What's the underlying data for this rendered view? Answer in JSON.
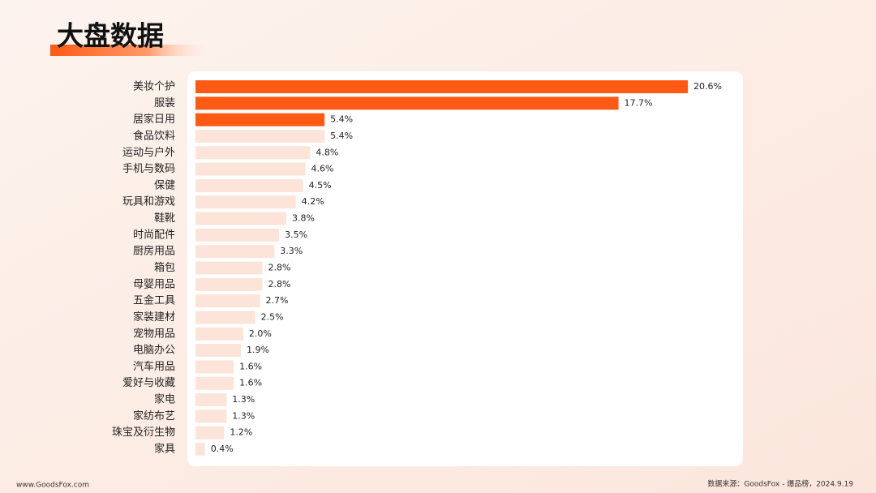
{
  "title": "大盘数据",
  "chart_data": {
    "type": "bar",
    "orientation": "horizontal",
    "categories": [
      "美妆个护",
      "服装",
      "居家日用",
      "食品饮料",
      "运动与户外",
      "手机与数码",
      "保健",
      "玩具和游戏",
      "鞋靴",
      "时尚配件",
      "厨房用品",
      "箱包",
      "母婴用品",
      "五金工具",
      "家装建材",
      "宠物用品",
      "电脑办公",
      "汽车用品",
      "爱好与收藏",
      "家电",
      "家纺布艺",
      "珠宝及衍生物",
      "家具"
    ],
    "values": [
      20.6,
      17.7,
      5.4,
      5.4,
      4.8,
      4.6,
      4.5,
      4.2,
      3.8,
      3.5,
      3.3,
      2.8,
      2.8,
      2.7,
      2.5,
      2.0,
      1.9,
      1.6,
      1.6,
      1.3,
      1.3,
      1.2,
      0.4
    ],
    "value_labels": [
      "20.6%",
      "17.7%",
      "5.4%",
      "5.4%",
      "4.8%",
      "4.6%",
      "4.5%",
      "4.2%",
      "3.8%",
      "3.5%",
      "3.3%",
      "2.8%",
      "2.8%",
      "2.7%",
      "2.5%",
      "2.0%",
      "1.9%",
      "1.6%",
      "1.6%",
      "1.3%",
      "1.3%",
      "1.2%",
      "0.4%"
    ],
    "colors": [
      "#ff5a14",
      "#ff5a14",
      "#ff5a14",
      "#fde4d9",
      "#fde4d9",
      "#fde4d9",
      "#fde4d9",
      "#fde4d9",
      "#fde4d9",
      "#fde4d9",
      "#fde4d9",
      "#fde4d9",
      "#fde4d9",
      "#fde4d9",
      "#fde4d9",
      "#fde4d9",
      "#fde4d9",
      "#fde4d9",
      "#fde4d9",
      "#fde4d9",
      "#fde4d9",
      "#fde4d9",
      "#fde4d9"
    ]
  },
  "footer": {
    "site": "www.GoodsFox.com",
    "source": "数据来源：GoodsFox - 爆品榜，2024.9.19"
  }
}
